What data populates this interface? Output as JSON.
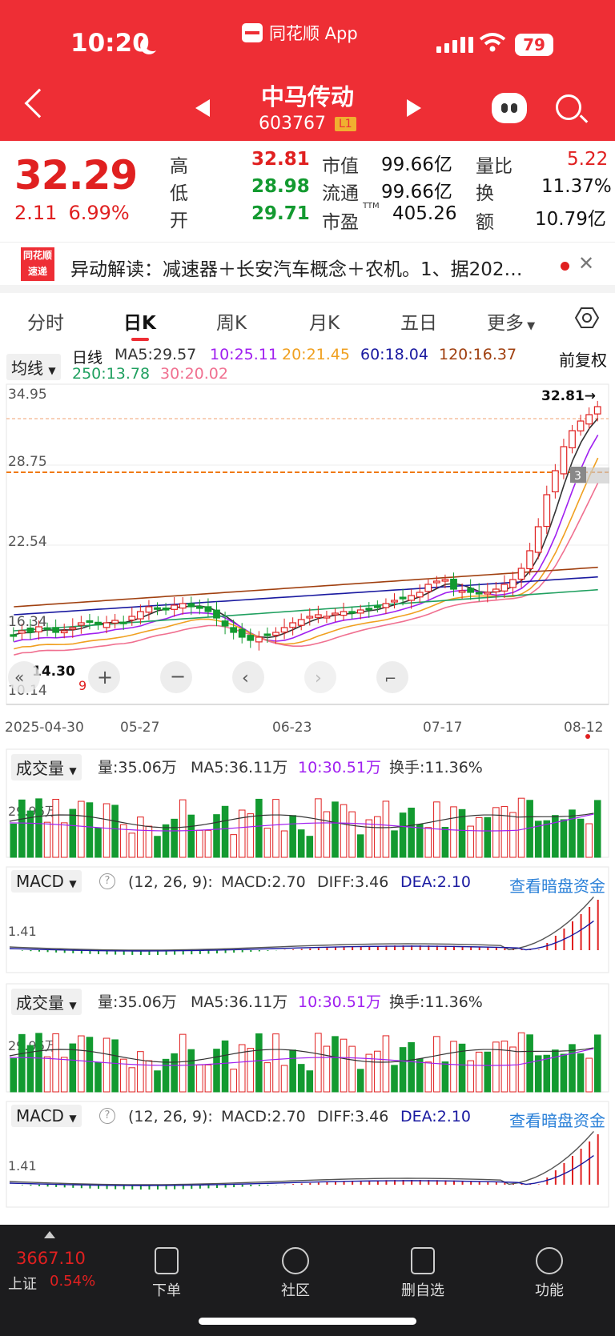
{
  "status": {
    "time": "10:20",
    "app": "同花顺 App",
    "battery": "79"
  },
  "header": {
    "name": "中马传动",
    "code": "603767",
    "level": "L1"
  },
  "quote": {
    "price": "32.29",
    "change": "2.11",
    "change_pct": "6.99%",
    "high_label": "高",
    "high": "32.81",
    "low_label": "低",
    "low": "28.98",
    "open_label": "开",
    "open": "29.71",
    "mktcap_label": "市值",
    "mktcap": "99.66亿",
    "float_label": "流通",
    "float": "99.66亿",
    "pe_label": "市盈",
    "pe_sup": "TTM",
    "pe": "405.26",
    "vr_label": "量比",
    "vr": "5.22",
    "turnover_label": "换",
    "turnover": "11.37%",
    "amount_label": "额",
    "amount": "10.79亿"
  },
  "news": {
    "logo_top": "同花顺",
    "logo_bottom": "速递",
    "text": "异动解读：减速器＋长安汽车概念＋农机。1、据202…"
  },
  "tabs": [
    "分时",
    "日K",
    "周K",
    "月K",
    "五日",
    "更多"
  ],
  "ma": {
    "selector": "均线",
    "period": "日线",
    "ma5": "MA5:29.57",
    "ma10": "10:25.11",
    "ma20": "20:21.45",
    "ma60": "60:18.04",
    "ma120": "120:16.37",
    "ma250": "250:13.78",
    "ma30": "30:20.02",
    "adjust": "前复权",
    "colors": {
      "ma5": "#333333",
      "ma10": "#a020f0",
      "ma20": "#f0a020",
      "ma60": "#1a1aa0",
      "ma120": "#a04010",
      "ma250": "#20a060",
      "ma30": "#f07090"
    }
  },
  "main_chart": {
    "y_ticks": [
      "34.95",
      "28.75",
      "22.54",
      "16.34",
      "10.14"
    ],
    "high_marker": "32.81→",
    "low_marker": "14.30",
    "dates": [
      "2025-04-30",
      "05-27",
      "06-23",
      "07-17",
      "08-12"
    ],
    "b3": "3"
  },
  "volume_panel": {
    "selector": "成交量",
    "vol": "量:35.06万",
    "ma5": "MA5:36.11万",
    "ma10": "10:30.51万",
    "turnover": "换手:11.36%",
    "y_tick": "29.96万"
  },
  "macd_panel": {
    "selector": "MACD",
    "help": "?",
    "params": "(12, 26, 9):",
    "macd": "MACD:2.70",
    "diff": "DIFF:3.46",
    "dea": "DEA:2.10",
    "link": "查看暗盘资金",
    "y_tick": "1.41"
  },
  "bottom": {
    "index_value": "3667.10",
    "index_name": "上证",
    "index_pct": "0.54%",
    "items": [
      "下单",
      "社区",
      "删自选",
      "功能"
    ]
  }
}
